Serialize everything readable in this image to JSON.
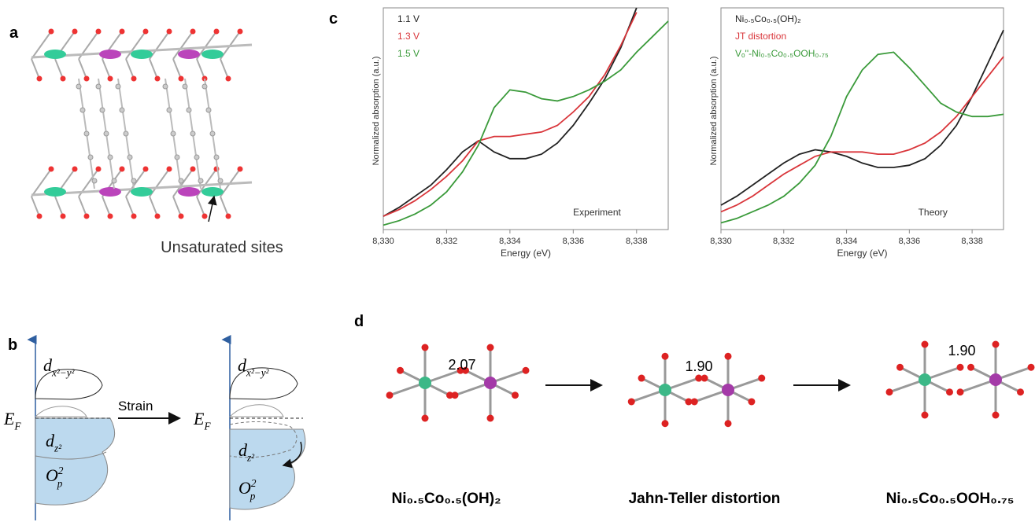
{
  "panels": {
    "a": {
      "label": "a",
      "annotation": "Unsaturated sites"
    },
    "b": {
      "label": "b",
      "strain": "Strain",
      "ef_left": {
        "base": "E",
        "sub": "F"
      },
      "ef_right": {
        "base": "E",
        "sub": "F"
      },
      "dx_left": {
        "base": "d",
        "sub": "x²−y²"
      },
      "dx_right": {
        "base": "d",
        "sub": "x²−y²"
      },
      "dz_left": {
        "base": "d",
        "sub": "z²"
      },
      "dz_right": {
        "base": "d",
        "sub": "z²"
      },
      "op_left": {
        "base": "O",
        "sub": "p",
        "sup": "2"
      },
      "op_right": {
        "base": "O",
        "sub": "p",
        "sup": "2"
      }
    },
    "c": {
      "label": "c"
    },
    "d": {
      "label": "d",
      "bond_lengths": [
        "2.07",
        "1.90",
        "1.90"
      ],
      "structures": [
        "Ni₀.₅Co₀.₅(OH)₂",
        "Jahn-Teller distortion",
        "Ni₀.₅Co₀.₅OOH₀.₇₅"
      ]
    }
  },
  "chart_data": [
    {
      "type": "line",
      "annotation": "Experiment",
      "x_label": "Energy (eV)",
      "y_label": "Normalized absorption (a.u.)",
      "x": [
        8330,
        8330.5,
        8331,
        8331.5,
        8332,
        8332.5,
        8333,
        8333.5,
        8334,
        8334.5,
        8335,
        8335.5,
        8336,
        8336.5,
        8337,
        8337.5,
        8338,
        8338.5,
        8339
      ],
      "xlim": [
        8330,
        8339
      ],
      "ylim": [
        0,
        1
      ],
      "xticks": [
        {
          "value": 8330,
          "label": "8,330"
        },
        {
          "value": 8332,
          "label": "8,332"
        },
        {
          "value": 8334,
          "label": "8,334"
        },
        {
          "value": 8336,
          "label": "8,336"
        },
        {
          "value": 8338,
          "label": "8,338"
        }
      ],
      "series": [
        {
          "name": "1.1 V",
          "color": "#222222",
          "values": [
            0.06,
            0.1,
            0.15,
            0.2,
            0.27,
            0.35,
            0.4,
            0.35,
            0.32,
            0.32,
            0.34,
            0.39,
            0.47,
            0.57,
            0.68,
            0.82,
            1.0,
            null,
            null
          ]
        },
        {
          "name": "1.3 V",
          "color": "#d9353a",
          "values": [
            0.06,
            0.09,
            0.13,
            0.18,
            0.24,
            0.31,
            0.4,
            0.42,
            0.42,
            0.43,
            0.44,
            0.47,
            0.53,
            0.6,
            0.7,
            0.83,
            0.98,
            null,
            null
          ]
        },
        {
          "name": "1.5 V",
          "color": "#3a9a3a",
          "values": [
            0.02,
            0.04,
            0.07,
            0.11,
            0.17,
            0.26,
            0.38,
            0.55,
            0.63,
            0.62,
            0.59,
            0.58,
            0.6,
            0.63,
            0.67,
            0.72,
            0.8,
            0.87,
            0.94
          ]
        }
      ]
    },
    {
      "type": "line",
      "annotation": "Theory",
      "x_label": "Energy (eV)",
      "y_label": "Normalized absorption (a.u.)",
      "x": [
        8330,
        8330.5,
        8331,
        8331.5,
        8332,
        8332.5,
        8333,
        8333.5,
        8334,
        8334.5,
        8335,
        8335.5,
        8336,
        8336.5,
        8337,
        8337.5,
        8338,
        8338.5,
        8339
      ],
      "xlim": [
        8330,
        8339
      ],
      "ylim": [
        0,
        1
      ],
      "xticks": [
        {
          "value": 8330,
          "label": "8,330"
        },
        {
          "value": 8332,
          "label": "8,332"
        },
        {
          "value": 8334,
          "label": "8,334"
        },
        {
          "value": 8336,
          "label": "8,336"
        },
        {
          "value": 8338,
          "label": "8,338"
        }
      ],
      "series": [
        {
          "name": "Ni₀.₅Co₀.₅(OH)₂",
          "color": "#222222",
          "values": [
            0.11,
            0.15,
            0.2,
            0.25,
            0.3,
            0.34,
            0.36,
            0.35,
            0.33,
            0.3,
            0.28,
            0.28,
            0.29,
            0.32,
            0.38,
            0.47,
            0.6,
            0.75,
            0.9
          ]
        },
        {
          "name": "JT distortion",
          "color": "#d9353a",
          "values": [
            0.08,
            0.11,
            0.15,
            0.2,
            0.25,
            0.29,
            0.33,
            0.35,
            0.35,
            0.35,
            0.34,
            0.34,
            0.36,
            0.39,
            0.44,
            0.51,
            0.6,
            0.69,
            0.78
          ]
        },
        {
          "name": "Vₒ''-Ni₀.₅Co₀.₅OOH₀.₇₅",
          "color": "#3a9a3a",
          "values": [
            0.03,
            0.05,
            0.08,
            0.11,
            0.15,
            0.21,
            0.29,
            0.42,
            0.6,
            0.72,
            0.79,
            0.8,
            0.73,
            0.65,
            0.57,
            0.53,
            0.51,
            0.51,
            0.52
          ]
        }
      ]
    }
  ]
}
